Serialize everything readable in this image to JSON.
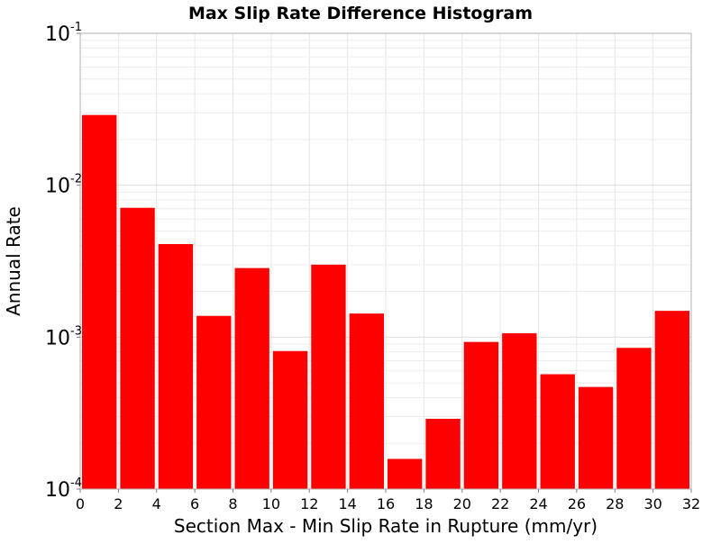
{
  "chart_data": {
    "type": "bar",
    "title": "Max Slip Rate Difference Histogram",
    "xlabel": "Section Max - Min Slip Rate in Rupture (mm/yr)",
    "ylabel": "Annual Rate",
    "yscale": "log",
    "xlim": [
      0,
      32
    ],
    "ylim": [
      0.0001,
      0.1
    ],
    "grid": true,
    "bar_color": "#ff0000",
    "bin_width": 2,
    "x_ticks": [
      "0",
      "2",
      "4",
      "6",
      "8",
      "10",
      "12",
      "14",
      "16",
      "18",
      "20",
      "22",
      "24",
      "26",
      "28",
      "30",
      "32"
    ],
    "y_ticks": [
      {
        "base": "10",
        "exp": "-4",
        "value": 0.0001
      },
      {
        "base": "10",
        "exp": "-3",
        "value": 0.001
      },
      {
        "base": "10",
        "exp": "-2",
        "value": 0.01
      },
      {
        "base": "10",
        "exp": "-1",
        "value": 0.1
      }
    ],
    "bins": [
      {
        "x0": 0,
        "x1": 2,
        "value": 0.029
      },
      {
        "x0": 2,
        "x1": 4,
        "value": 0.0071
      },
      {
        "x0": 4,
        "x1": 6,
        "value": 0.0041
      },
      {
        "x0": 6,
        "x1": 8,
        "value": 0.00138
      },
      {
        "x0": 8,
        "x1": 10,
        "value": 0.00285
      },
      {
        "x0": 10,
        "x1": 12,
        "value": 0.00081
      },
      {
        "x0": 12,
        "x1": 14,
        "value": 0.003
      },
      {
        "x0": 14,
        "x1": 16,
        "value": 0.00143
      },
      {
        "x0": 16,
        "x1": 18,
        "value": 0.000158
      },
      {
        "x0": 18,
        "x1": 20,
        "value": 0.00029
      },
      {
        "x0": 20,
        "x1": 22,
        "value": 0.00093
      },
      {
        "x0": 22,
        "x1": 24,
        "value": 0.00106
      },
      {
        "x0": 24,
        "x1": 26,
        "value": 0.00057
      },
      {
        "x0": 26,
        "x1": 28,
        "value": 0.00047
      },
      {
        "x0": 28,
        "x1": 30,
        "value": 0.00085
      },
      {
        "x0": 30,
        "x1": 32,
        "value": 0.00149
      }
    ]
  }
}
